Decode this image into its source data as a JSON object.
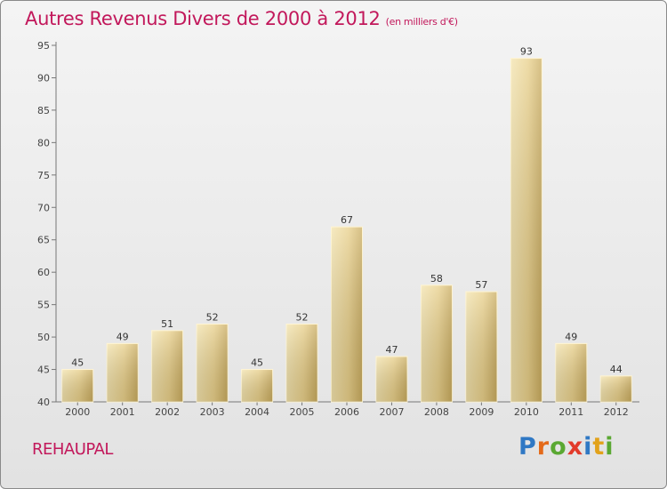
{
  "header": {
    "title": "Autres Revenus Divers de 2000 à 2012",
    "subtitle": "(en milliers d'€)"
  },
  "footer": {
    "place": "REHAUPAL",
    "brand_letters": [
      {
        "ch": "P",
        "color": "#2f78c4"
      },
      {
        "ch": "r",
        "color": "#e46a1a"
      },
      {
        "ch": "o",
        "color": "#5aa832"
      },
      {
        "ch": "x",
        "color": "#e23a2a"
      },
      {
        "ch": "i",
        "color": "#2f78c4"
      },
      {
        "ch": "t",
        "color": "#e2a21a"
      },
      {
        "ch": "i",
        "color": "#5aa832"
      }
    ]
  },
  "chart_data": {
    "type": "bar",
    "title": "Autres Revenus Divers de 2000 à 2012",
    "categories": [
      "2000",
      "2001",
      "2002",
      "2003",
      "2004",
      "2005",
      "2006",
      "2007",
      "2008",
      "2009",
      "2010",
      "2011",
      "2012"
    ],
    "values": [
      45,
      49,
      51,
      52,
      45,
      52,
      67,
      47,
      58,
      57,
      93,
      49,
      44
    ],
    "ylim": [
      40,
      95
    ],
    "yticks": [
      40,
      45,
      50,
      55,
      60,
      65,
      70,
      75,
      80,
      85,
      90,
      95
    ],
    "grid": false,
    "bar_color": "#e8cf86"
  }
}
